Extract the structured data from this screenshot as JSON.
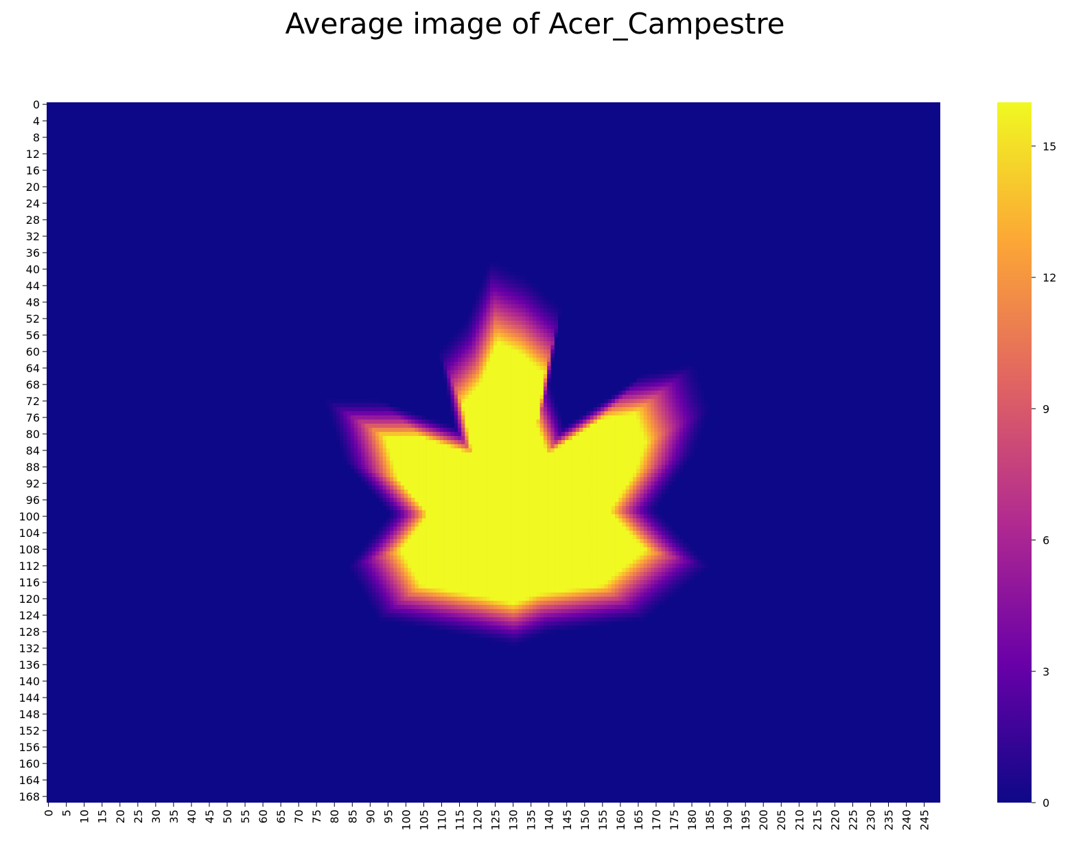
{
  "chart_data": {
    "type": "heatmap",
    "title": "Average image of Acer_Campestre",
    "xlabel": "",
    "ylabel": "",
    "grid": false,
    "colormap": "plasma",
    "rows": 170,
    "cols": 250,
    "x_ticks": [
      "0",
      "5",
      "10",
      "15",
      "20",
      "25",
      "30",
      "35",
      "40",
      "45",
      "50",
      "55",
      "60",
      "65",
      "70",
      "75",
      "80",
      "85",
      "90",
      "95",
      "100",
      "105",
      "110",
      "115",
      "120",
      "125",
      "130",
      "135",
      "140",
      "145",
      "150",
      "155",
      "160",
      "165",
      "170",
      "175",
      "180",
      "185",
      "190",
      "195",
      "200",
      "205",
      "210",
      "215",
      "220",
      "225",
      "230",
      "235",
      "240",
      "245"
    ],
    "y_ticks": [
      "0",
      "4",
      "8",
      "12",
      "16",
      "20",
      "24",
      "28",
      "32",
      "36",
      "40",
      "44",
      "48",
      "52",
      "56",
      "60",
      "64",
      "68",
      "72",
      "76",
      "80",
      "84",
      "88",
      "92",
      "96",
      "100",
      "104",
      "108",
      "112",
      "116",
      "120",
      "124",
      "128",
      "132",
      "136",
      "140",
      "144",
      "148",
      "152",
      "156",
      "160",
      "164",
      "168"
    ],
    "colorbar": {
      "min": 0,
      "max": 16,
      "ticks": [
        "0",
        "3",
        "6",
        "9",
        "12",
        "15"
      ],
      "colors": [
        "#0d0887",
        "#6a00a8",
        "#b12a90",
        "#e16462",
        "#fca636",
        "#f0f921"
      ]
    },
    "blob": {
      "center": [
        130,
        100
      ],
      "peak": 16,
      "outline": [
        [
          124.5,
          42
        ],
        [
          134,
          46
        ],
        [
          143,
          53
        ],
        [
          140,
          70
        ],
        [
          144,
          80
        ],
        [
          165,
          68
        ],
        [
          178,
          66
        ],
        [
          182,
          76
        ],
        [
          178,
          86
        ],
        [
          168,
          99
        ],
        [
          182,
          112
        ],
        [
          165,
          124
        ],
        [
          140,
          127
        ],
        [
          131,
          130
        ],
        [
          120,
          128
        ],
        [
          95,
          124
        ],
        [
          87,
          112
        ],
        [
          98,
          100
        ],
        [
          86,
          88
        ],
        [
          81,
          74
        ],
        [
          95,
          74
        ],
        [
          115,
          80
        ],
        [
          111,
          63
        ],
        [
          118,
          56
        ]
      ]
    }
  }
}
